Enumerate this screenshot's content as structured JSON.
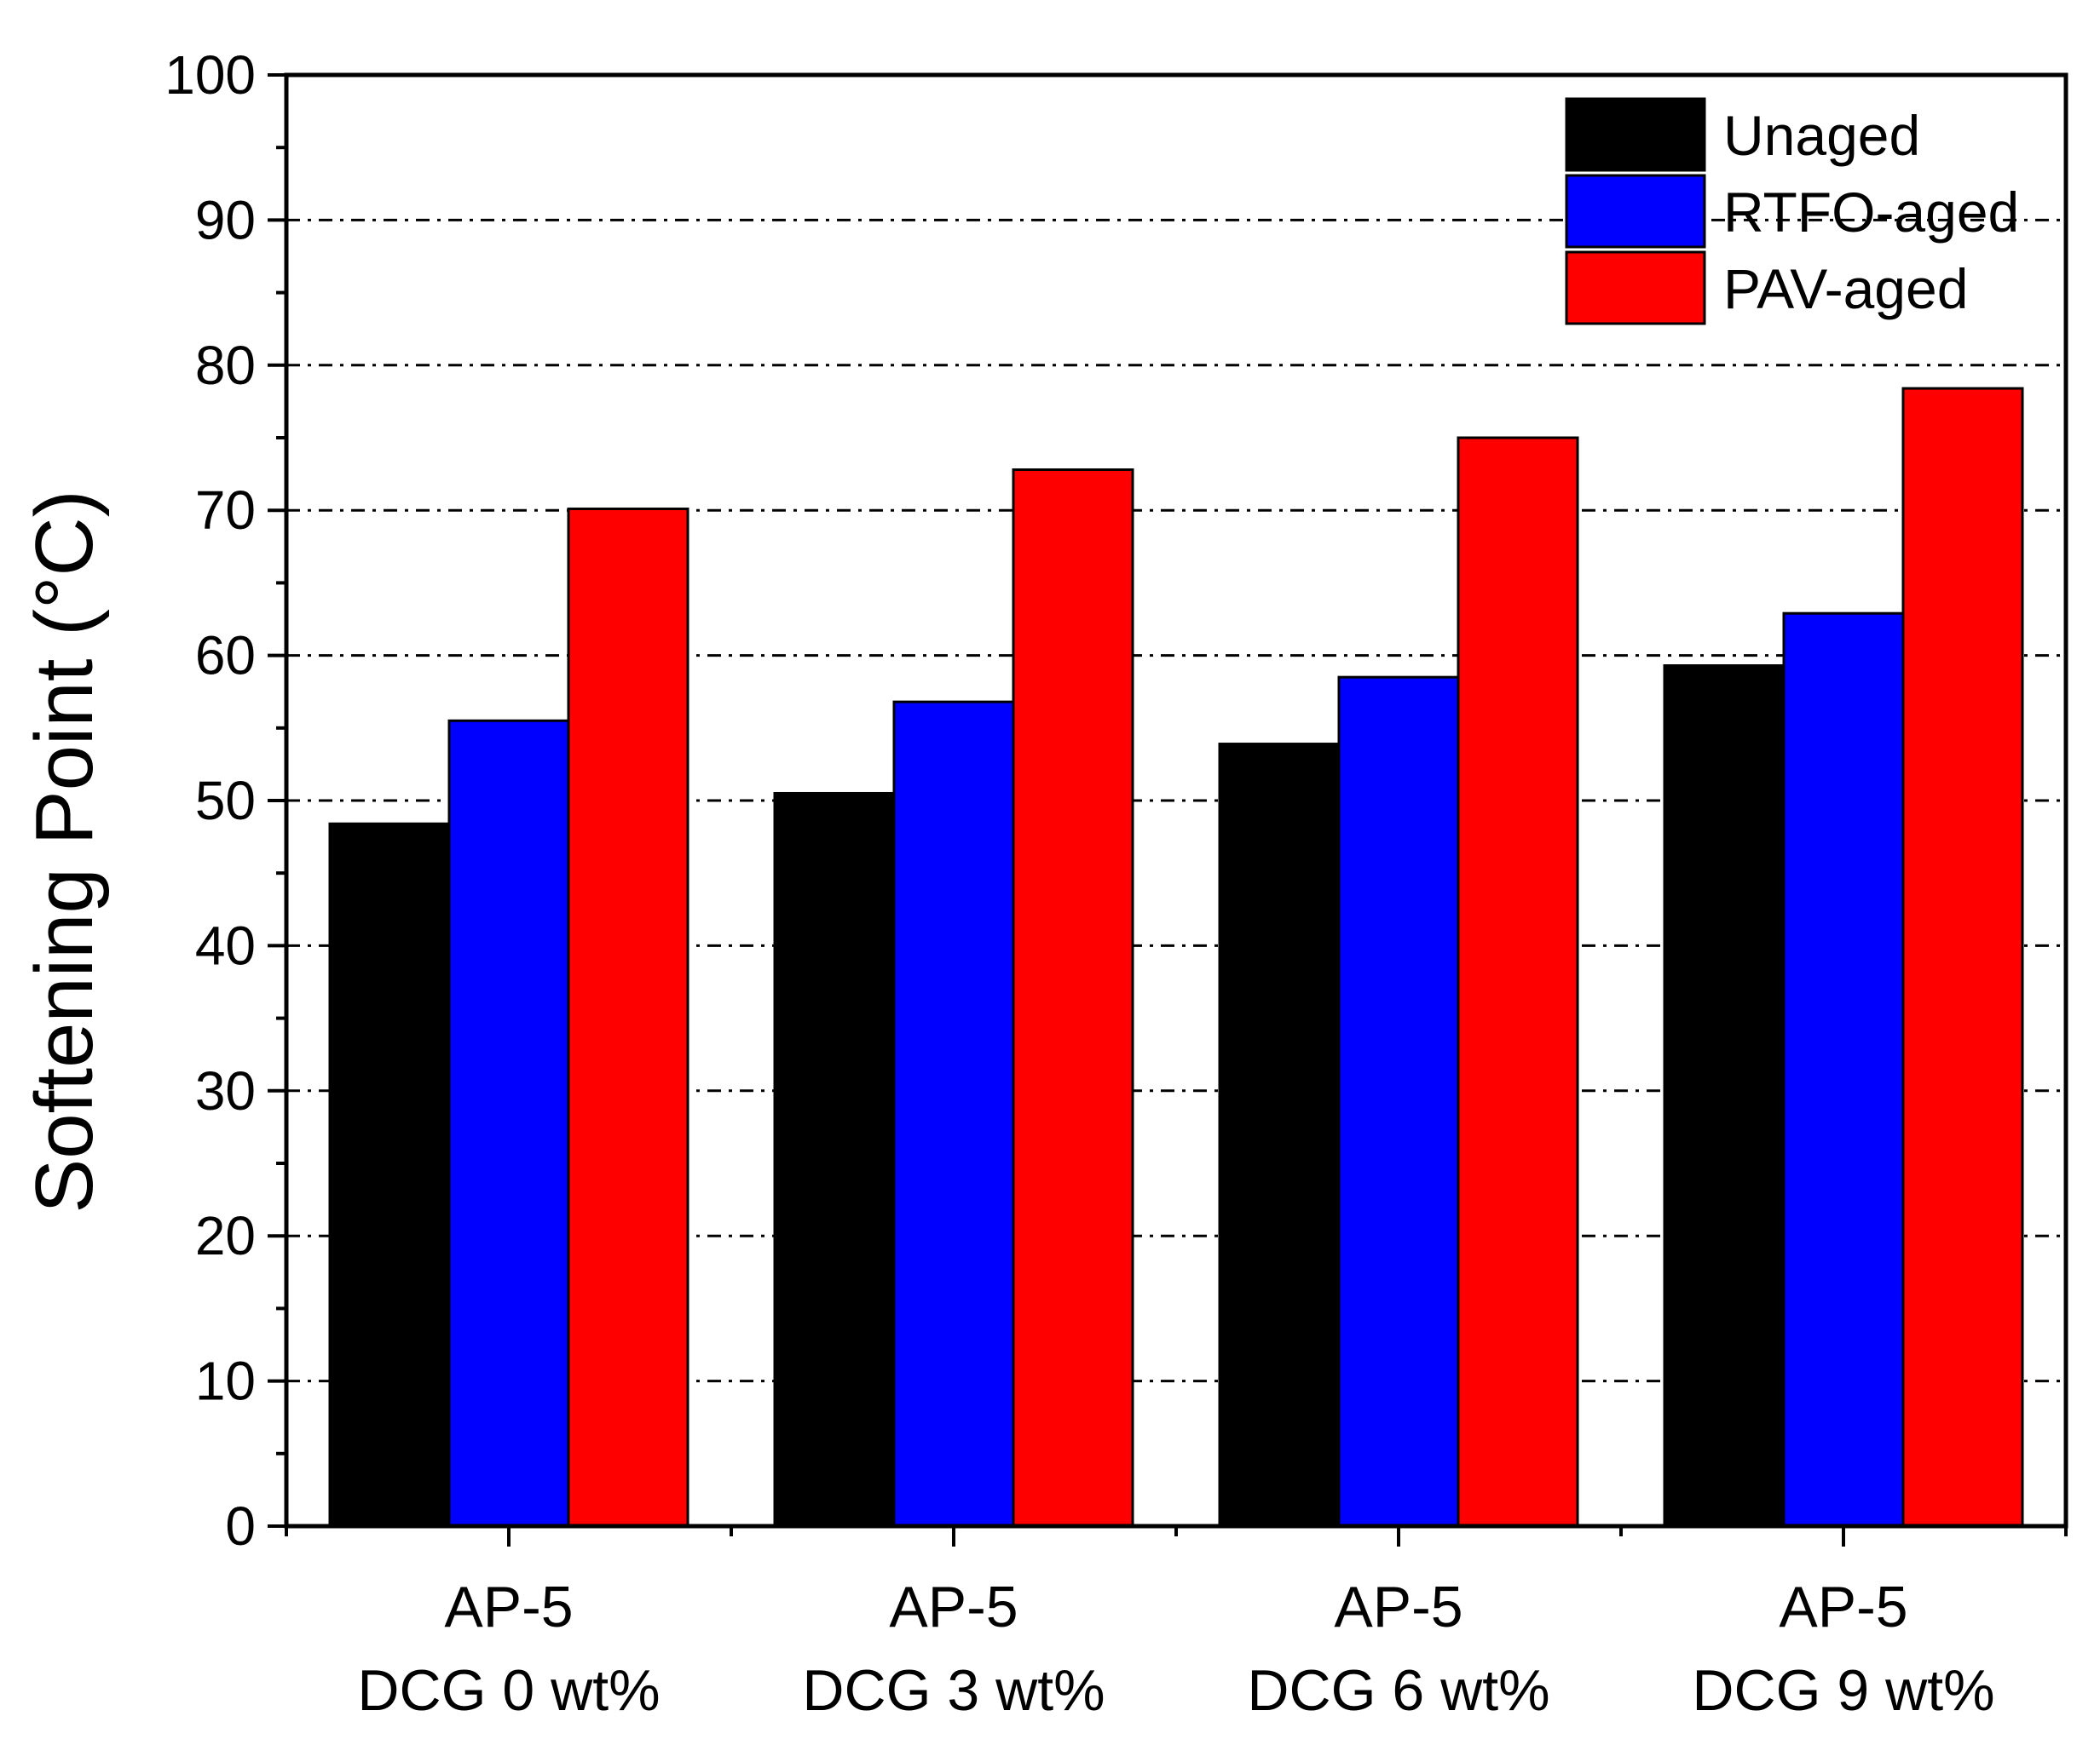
{
  "chart_data": {
    "type": "bar",
    "title": "",
    "xlabel": "",
    "ylabel": "Softening Point (°C)",
    "ylim": [
      0,
      100
    ],
    "yticks": [
      0,
      10,
      20,
      30,
      40,
      50,
      60,
      70,
      80,
      90,
      100
    ],
    "grid": "horizontal dash-dot",
    "legend_position": "top-right",
    "categories": [
      {
        "line1": "AP-5",
        "line2": "DCG 0 wt%"
      },
      {
        "line1": "AP-5",
        "line2": "DCG 3 wt%"
      },
      {
        "line1": "AP-5",
        "line2": "DCG 6 wt%"
      },
      {
        "line1": "AP-5",
        "line2": "DCG 9 wt%"
      }
    ],
    "series": [
      {
        "name": "Unaged",
        "color": "#000000",
        "values": [
          48.4,
          50.5,
          53.9,
          59.3
        ]
      },
      {
        "name": "RTFO-aged",
        "color": "#0000ff",
        "values": [
          55.5,
          56.8,
          58.5,
          62.9
        ]
      },
      {
        "name": "PAV-aged",
        "color": "#ff0000",
        "values": [
          70.1,
          72.8,
          75.0,
          78.4
        ]
      }
    ]
  }
}
